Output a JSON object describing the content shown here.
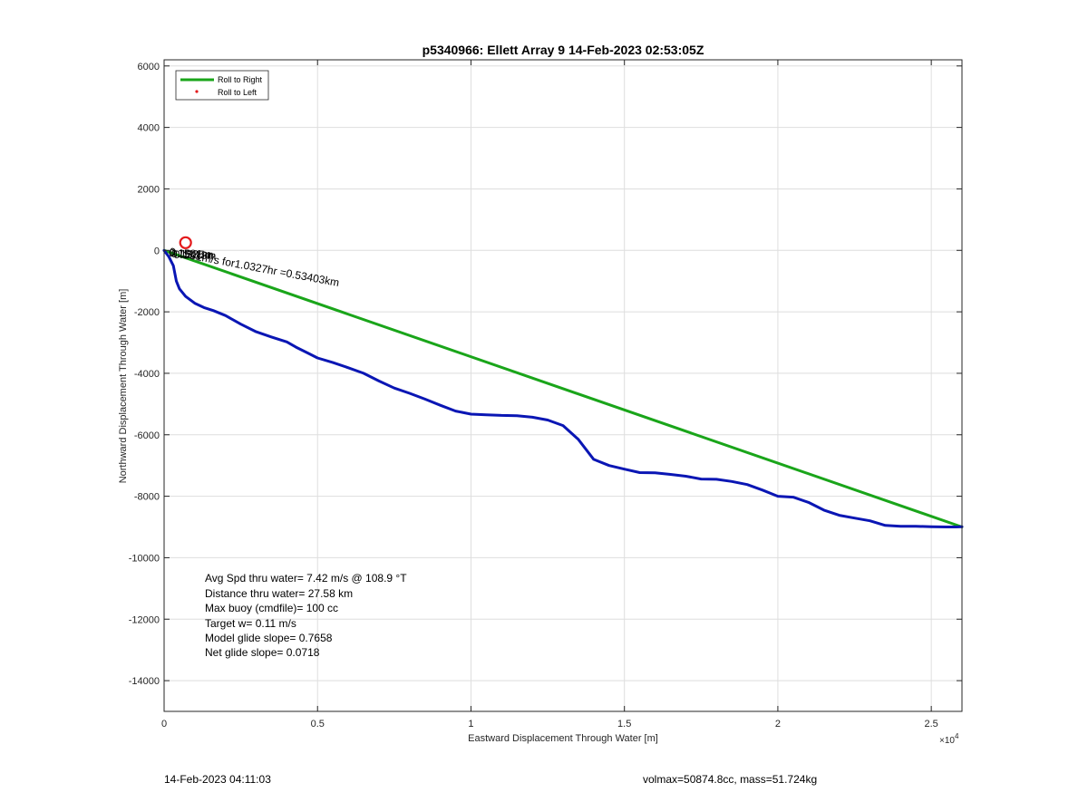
{
  "chart_data": {
    "type": "line",
    "title": "p5340966: Ellett Array 9 14-Feb-2023 02:53:05Z",
    "xlabel": "Eastward Displacement Through Water [m]",
    "ylabel": "Northward Displacement Through Water [m]",
    "x_exponent_label": "×10",
    "x_exponent_power": "4",
    "xlim": [
      0,
      26000
    ],
    "ylim": [
      -15000,
      6200
    ],
    "xticks": [
      0,
      5000,
      10000,
      15000,
      20000,
      25000
    ],
    "xtick_labels": [
      "0",
      "0.5",
      "1",
      "1.5",
      "2",
      "2.5"
    ],
    "yticks": [
      6000,
      4000,
      2000,
      0,
      -2000,
      -4000,
      -6000,
      -8000,
      -10000,
      -12000,
      -14000
    ],
    "ytick_labels": [
      "6000",
      "4000",
      "2000",
      "0",
      "-2000",
      "-4000",
      "-6000",
      "-8000",
      "-10000",
      "-12000",
      "-14000"
    ],
    "grid": true,
    "legend_position": "top-left",
    "legend": [
      {
        "label": "Roll to Right",
        "style": "line",
        "color": "#1aa51a"
      },
      {
        "label": "Roll to Left",
        "style": "dot",
        "color": "#e41a1c"
      }
    ],
    "series": [
      {
        "color": "#1aa51a",
        "x": [
          0,
          26000
        ],
        "y": [
          0,
          -9000
        ]
      },
      {
        "color": "#0a16b4",
        "x": [
          0,
          150,
          300,
          400,
          500,
          700,
          1000,
          1300,
          1600,
          2000,
          2500,
          3000,
          3500,
          4000,
          4300,
          4700,
          5000,
          5500,
          6000,
          6500,
          7000,
          7500,
          8000,
          8500,
          9000,
          9500,
          10000,
          10500,
          11000,
          11500,
          12000,
          12500,
          13000,
          13500,
          14000,
          14500,
          15000,
          15500,
          16000,
          16500,
          17000,
          17500,
          18000,
          18500,
          19000,
          19500,
          20000,
          20500,
          21000,
          21500,
          22000,
          22500,
          23000,
          23500,
          24000,
          24500,
          25000,
          25500,
          25800,
          26000
        ],
        "y": [
          0,
          -200,
          -500,
          -1000,
          -1250,
          -1500,
          -1720,
          -1860,
          -1960,
          -2120,
          -2400,
          -2650,
          -2820,
          -2980,
          -3150,
          -3350,
          -3500,
          -3650,
          -3820,
          -4000,
          -4250,
          -4480,
          -4650,
          -4840,
          -5040,
          -5230,
          -5330,
          -5350,
          -5370,
          -5380,
          -5430,
          -5520,
          -5700,
          -6150,
          -6800,
          -7000,
          -7120,
          -7230,
          -7240,
          -7290,
          -7350,
          -7440,
          -7450,
          -7520,
          -7620,
          -7800,
          -8000,
          -8030,
          -8200,
          -8450,
          -8620,
          -8710,
          -8800,
          -8950,
          -8980,
          -8980,
          -8990,
          -9000,
          -9000,
          -8990
        ]
      }
    ],
    "markers": [
      {
        "type": "circle",
        "color": "#e41a1c",
        "x": 700,
        "y": 250
      }
    ],
    "annotations": [
      {
        "text": "0.1591m/s for1.0327hr =0.53403km",
        "x": 150,
        "y": -150,
        "rotation_deg": 10.5
      },
      {
        "text": "0.1581m",
        "x": 150,
        "y": -200,
        "rotation_deg": 2
      },
      {
        "text": "0.1535m",
        "x": 230,
        "y": -220,
        "rotation_deg": 2
      },
      {
        "text": "0.1518m",
        "x": 310,
        "y": -250,
        "rotation_deg": 2
      }
    ],
    "stats_lines": [
      "Avg Spd thru water=  7.42 m/s @ 108.9 °T",
      "Distance thru water= 27.58 km",
      "Max buoy (cmdfile)= 100 cc",
      "Target w= 0.11 m/s",
      "Model glide slope= 0.7658",
      "Net glide slope= 0.0718"
    ]
  },
  "footer": {
    "left": "14-Feb-2023 04:11:03",
    "right": "volmax=50874.8cc, mass=51.724kg"
  }
}
